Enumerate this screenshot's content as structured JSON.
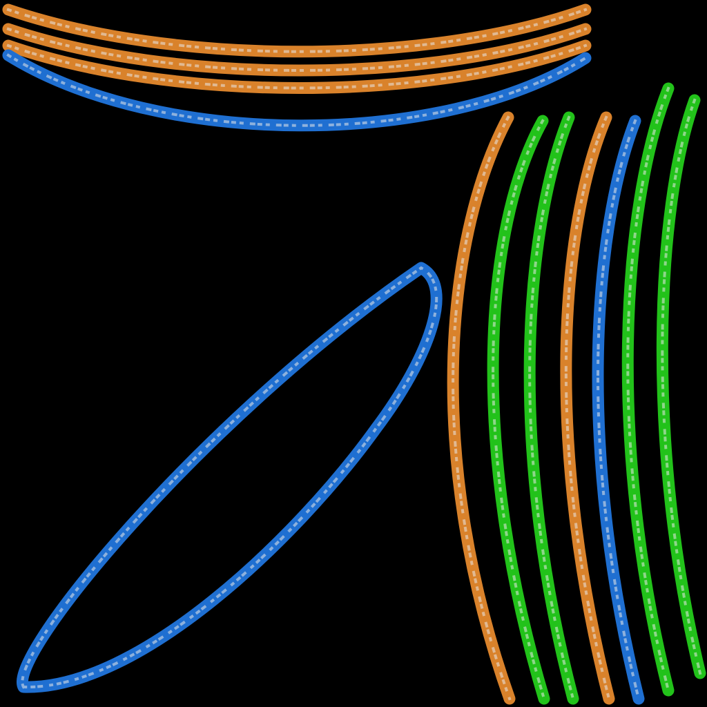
{
  "scene": {
    "background": "#000000",
    "colors": {
      "orange": "#d9822b",
      "blue": "#1f6fd1",
      "green": "#22c21a",
      "speckle": "#e8e8e8"
    },
    "strands": [
      {
        "name": "top-orange-strand-1",
        "color": "orange"
      },
      {
        "name": "top-orange-strand-2",
        "color": "orange"
      },
      {
        "name": "top-orange-strand-3",
        "color": "orange"
      },
      {
        "name": "top-blue-strand",
        "color": "blue"
      },
      {
        "name": "blue-loop-strand",
        "color": "blue"
      },
      {
        "name": "right-orange-strand-1",
        "color": "orange"
      },
      {
        "name": "right-green-strand-1",
        "color": "green"
      },
      {
        "name": "right-green-strand-2",
        "color": "green"
      },
      {
        "name": "right-orange-strand-2",
        "color": "orange"
      },
      {
        "name": "right-blue-strand",
        "color": "blue"
      },
      {
        "name": "right-green-strand-3",
        "color": "green"
      },
      {
        "name": "right-green-strand-4",
        "color": "green"
      }
    ]
  }
}
